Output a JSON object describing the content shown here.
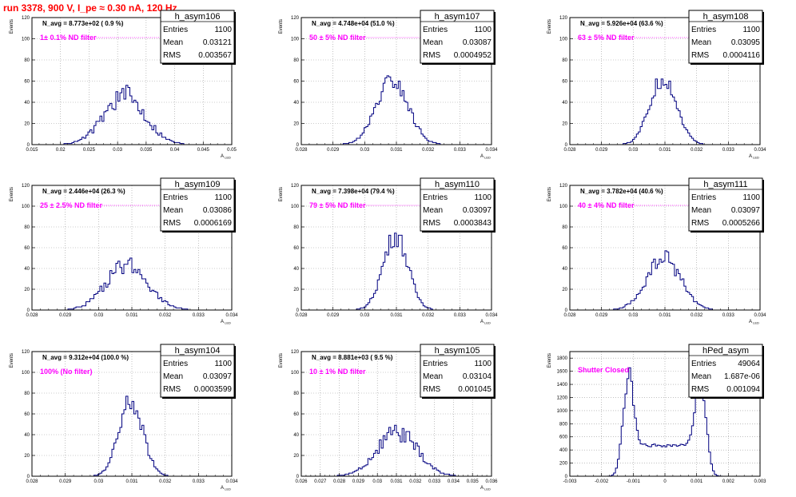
{
  "run_title": "run 3378,   900 V, I_pe ≈ 0.30 nA, 120 Hz",
  "colors": {
    "title": "#ff0000",
    "filter_text": "#ff00ff",
    "hist_line": "#000080",
    "grid": "#999999"
  },
  "chart_data": [
    {
      "type": "histogram",
      "name": "h_asym106",
      "n_avg": "N_avg = 8.773e+02 ( 0.9 %)",
      "filter": "1± 0.1% ND filter",
      "stats": {
        "Entries": "1100",
        "Mean": "0.03121",
        "RMS": "0.003567"
      },
      "xlabel": "A_LED",
      "ylabel": "Events",
      "xlim": [
        0.015,
        0.05
      ],
      "ylim": [
        0,
        120
      ],
      "xticks": [
        0.015,
        0.02,
        0.025,
        0.03,
        0.035,
        0.04,
        0.045,
        0.05
      ],
      "xtick_labels": [
        "0.015",
        "0.02",
        "0.025",
        "0.03",
        "0.035",
        "0.04",
        "0.045",
        "0.05"
      ],
      "yticks": [
        0,
        20,
        40,
        60,
        80,
        100,
        120
      ],
      "ytick_labels": [
        "0",
        "20",
        "40",
        "60",
        "80",
        "100",
        "120"
      ],
      "shape": {
        "peaks": [
          {
            "center": 0.0312,
            "sigma": 0.0036,
            "height": 46
          }
        ],
        "noise": 0.22,
        "seed": 106
      }
    },
    {
      "type": "histogram",
      "name": "h_asym107",
      "n_avg": "N_avg = 4.748e+04 (51.0 %)",
      "filter": "50 ± 5% ND filter",
      "stats": {
        "Entries": "1100",
        "Mean": "0.03087",
        "RMS": "0.0004952"
      },
      "xlabel": "A_LED",
      "ylabel": "Events",
      "xlim": [
        0.028,
        0.034
      ],
      "ylim": [
        0,
        120
      ],
      "xticks": [
        0.028,
        0.029,
        0.03,
        0.031,
        0.032,
        0.033,
        0.034
      ],
      "xtick_labels": [
        "0.028",
        "0.029",
        "0.03",
        "0.031",
        "0.032",
        "0.033",
        "0.034"
      ],
      "yticks": [
        0,
        20,
        40,
        60,
        80,
        100,
        120
      ],
      "ytick_labels": [
        "0",
        "20",
        "40",
        "60",
        "80",
        "100",
        "120"
      ],
      "shape": {
        "peaks": [
          {
            "center": 0.03087,
            "sigma": 0.0005,
            "height": 60
          }
        ],
        "noise": 0.15,
        "seed": 107
      }
    },
    {
      "type": "histogram",
      "name": "h_asym108",
      "n_avg": "N_avg = 5.926e+04 (63.6 %)",
      "filter": "63 ± 5% ND filter",
      "stats": {
        "Entries": "1100",
        "Mean": "0.03095",
        "RMS": "0.0004116"
      },
      "xlabel": "A_LED",
      "ylabel": "Events",
      "xlim": [
        0.028,
        0.034
      ],
      "ylim": [
        0,
        120
      ],
      "xticks": [
        0.028,
        0.029,
        0.03,
        0.031,
        0.032,
        0.033,
        0.034
      ],
      "xtick_labels": [
        "0.028",
        "0.029",
        "0.03",
        "0.031",
        "0.032",
        "0.033",
        "0.034"
      ],
      "yticks": [
        0,
        20,
        40,
        60,
        80,
        100,
        120
      ],
      "ytick_labels": [
        "0",
        "20",
        "40",
        "60",
        "80",
        "100",
        "120"
      ],
      "shape": {
        "peaks": [
          {
            "center": 0.03095,
            "sigma": 0.00042,
            "height": 63
          }
        ],
        "noise": 0.14,
        "seed": 108
      }
    },
    {
      "type": "histogram",
      "name": "h_asym109",
      "n_avg": "N_avg = 2.446e+04 (26.3 %)",
      "filter": "25 ± 2.5% ND filter",
      "stats": {
        "Entries": "1100",
        "Mean": "0.03086",
        "RMS": "0.0006169"
      },
      "xlabel": "A_LED",
      "ylabel": "Events",
      "xlim": [
        0.028,
        0.034
      ],
      "ylim": [
        0,
        120
      ],
      "xticks": [
        0.028,
        0.029,
        0.03,
        0.031,
        0.032,
        0.033,
        0.034
      ],
      "xtick_labels": [
        "0.028",
        "0.029",
        "0.03",
        "0.031",
        "0.032",
        "0.033",
        "0.034"
      ],
      "yticks": [
        0,
        20,
        40,
        60,
        80,
        100,
        120
      ],
      "ytick_labels": [
        "0",
        "20",
        "40",
        "60",
        "80",
        "100",
        "120"
      ],
      "shape": {
        "peaks": [
          {
            "center": 0.03086,
            "sigma": 0.00062,
            "height": 44
          }
        ],
        "noise": 0.2,
        "seed": 109
      }
    },
    {
      "type": "histogram",
      "name": "h_asym110",
      "n_avg": "N_avg = 7.398e+04 (79.4 %)",
      "filter": "79 ± 5% ND filter",
      "stats": {
        "Entries": "1100",
        "Mean": "0.03097",
        "RMS": "0.0003843"
      },
      "xlabel": "A_LED",
      "ylabel": "Events",
      "xlim": [
        0.028,
        0.034
      ],
      "ylim": [
        0,
        120
      ],
      "xticks": [
        0.028,
        0.029,
        0.03,
        0.031,
        0.032,
        0.033,
        0.034
      ],
      "xtick_labels": [
        "0.028",
        "0.029",
        "0.03",
        "0.031",
        "0.032",
        "0.033",
        "0.034"
      ],
      "yticks": [
        0,
        20,
        40,
        60,
        80,
        100,
        120
      ],
      "ytick_labels": [
        "0",
        "20",
        "40",
        "60",
        "80",
        "100",
        "120"
      ],
      "shape": {
        "peaks": [
          {
            "center": 0.03097,
            "sigma": 0.00039,
            "height": 72
          }
        ],
        "noise": 0.14,
        "seed": 110
      }
    },
    {
      "type": "histogram",
      "name": "h_asym111",
      "n_avg": "N_avg = 3.782e+04 (40.6 %)",
      "filter": "40 ± 4% ND filter",
      "stats": {
        "Entries": "1100",
        "Mean": "0.03097",
        "RMS": "0.0005266"
      },
      "xlabel": "A_LED",
      "ylabel": "Events",
      "xlim": [
        0.028,
        0.034
      ],
      "ylim": [
        0,
        120
      ],
      "xticks": [
        0.028,
        0.029,
        0.03,
        0.031,
        0.032,
        0.033,
        0.034
      ],
      "xtick_labels": [
        "0.028",
        "0.029",
        "0.03",
        "0.031",
        "0.032",
        "0.033",
        "0.034"
      ],
      "yticks": [
        0,
        20,
        40,
        60,
        80,
        100,
        120
      ],
      "ytick_labels": [
        "0",
        "20",
        "40",
        "60",
        "80",
        "100",
        "120"
      ],
      "shape": {
        "peaks": [
          {
            "center": 0.03097,
            "sigma": 0.00053,
            "height": 50
          }
        ],
        "noise": 0.18,
        "seed": 111
      }
    },
    {
      "type": "histogram",
      "name": "h_asym104",
      "n_avg": "N_avg = 9.312e+04 (100.0 %)",
      "filter": "100% (No filter)",
      "stats": {
        "Entries": "1100",
        "Mean": "0.03097",
        "RMS": "0.0003599"
      },
      "xlabel": "A_LED",
      "ylabel": "Events",
      "xlim": [
        0.028,
        0.034
      ],
      "ylim": [
        0,
        120
      ],
      "xticks": [
        0.028,
        0.029,
        0.03,
        0.031,
        0.032,
        0.033,
        0.034
      ],
      "xtick_labels": [
        "0.028",
        "0.029",
        "0.03",
        "0.031",
        "0.032",
        "0.033",
        "0.034"
      ],
      "yticks": [
        0,
        20,
        40,
        60,
        80,
        100,
        120
      ],
      "ytick_labels": [
        "0",
        "20",
        "40",
        "60",
        "80",
        "100",
        "120"
      ],
      "shape": {
        "peaks": [
          {
            "center": 0.03097,
            "sigma": 0.00036,
            "height": 72
          }
        ],
        "noise": 0.13,
        "seed": 104
      }
    },
    {
      "type": "histogram",
      "name": "h_asym105",
      "n_avg": "N_avg = 8.881e+03 ( 9.5 %)",
      "filter": "10 ± 1% ND filter",
      "stats": {
        "Entries": "1100",
        "Mean": "0.03104",
        "RMS": "0.001045"
      },
      "xlabel": "A_LED",
      "ylabel": "Events",
      "xlim": [
        0.026,
        0.036
      ],
      "ylim": [
        0,
        120
      ],
      "xticks": [
        0.026,
        0.027,
        0.028,
        0.029,
        0.03,
        0.031,
        0.032,
        0.033,
        0.034,
        0.035,
        0.036
      ],
      "xtick_labels": [
        "0.026",
        "0.027",
        "0.028",
        "0.029",
        "0.03",
        "0.031",
        "0.032",
        "0.033",
        "0.034",
        "0.035",
        "0.036"
      ],
      "yticks": [
        0,
        20,
        40,
        60,
        80,
        100,
        120
      ],
      "ytick_labels": [
        "0",
        "20",
        "40",
        "60",
        "80",
        "100",
        "120"
      ],
      "shape": {
        "peaks": [
          {
            "center": 0.03104,
            "sigma": 0.00105,
            "height": 42
          }
        ],
        "noise": 0.22,
        "seed": 105
      }
    },
    {
      "type": "histogram",
      "name": "hPed_asym",
      "n_avg": "",
      "filter": "Shutter Closed",
      "stats": {
        "Entries": "49064",
        "Mean": "1.687e-06",
        "RMS": "0.001094"
      },
      "xlabel": "",
      "ylabel": "Events",
      "xlim": [
        -0.003,
        0.003
      ],
      "ylim": [
        0,
        1900
      ],
      "xticks": [
        -0.003,
        -0.002,
        -0.001,
        0,
        0.001,
        0.002,
        0.003
      ],
      "xtick_labels": [
        "-0.003",
        "-0.002",
        "-0.001",
        "0",
        "0.001",
        "0.002",
        "0.003"
      ],
      "yticks": [
        0,
        200,
        400,
        600,
        800,
        1000,
        1200,
        1400,
        1600,
        1800
      ],
      "ytick_labels": [
        "0",
        "200",
        "400",
        "600",
        "800",
        "1000",
        "1200",
        "1400",
        "1600",
        "1800"
      ],
      "shape": {
        "peaks": [
          {
            "center": -0.00118,
            "sigma": 0.00016,
            "height": 1320
          },
          {
            "center": 0.00115,
            "sigma": 0.00016,
            "height": 1330
          }
        ],
        "plateau": {
          "from": -0.0012,
          "to": 0.0012,
          "height": 470
        },
        "noise": 0.05,
        "seed": 99
      }
    }
  ]
}
